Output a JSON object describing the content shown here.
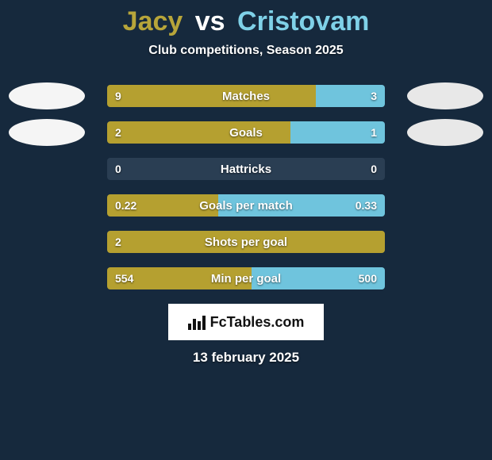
{
  "title": {
    "player1": "Jacy",
    "vs": "vs",
    "player2": "Cristovam",
    "p1_color": "#b7a53a",
    "p2_color": "#7fd1e8"
  },
  "subtitle": "Club competitions, Season 2025",
  "colors": {
    "background": "#16293d",
    "bar_track": "#2a3e53",
    "p1_bar": "#b5a030",
    "p2_bar": "#6fc4dd",
    "avatar_p1": "#f5f5f5",
    "avatar_p2": "#e8e8e8",
    "text": "#ffffff"
  },
  "bar_track_width": 350,
  "rows": [
    {
      "label": "Matches",
      "v1": "9",
      "v2": "3",
      "p1_pct": 75,
      "p2_pct": 25,
      "show_avatars": true
    },
    {
      "label": "Goals",
      "v1": "2",
      "v2": "1",
      "p1_pct": 66,
      "p2_pct": 34,
      "show_avatars": true
    },
    {
      "label": "Hattricks",
      "v1": "0",
      "v2": "0",
      "p1_pct": 0,
      "p2_pct": 0,
      "show_avatars": false
    },
    {
      "label": "Goals per match",
      "v1": "0.22",
      "v2": "0.33",
      "p1_pct": 40,
      "p2_pct": 60,
      "show_avatars": false
    },
    {
      "label": "Shots per goal",
      "v1": "2",
      "v2": "",
      "p1_pct": 100,
      "p2_pct": 0,
      "show_avatars": false
    },
    {
      "label": "Min per goal",
      "v1": "554",
      "v2": "500",
      "p1_pct": 52,
      "p2_pct": 48,
      "show_avatars": false
    }
  ],
  "logo_text": "FcTables.com",
  "date": "13 february 2025"
}
